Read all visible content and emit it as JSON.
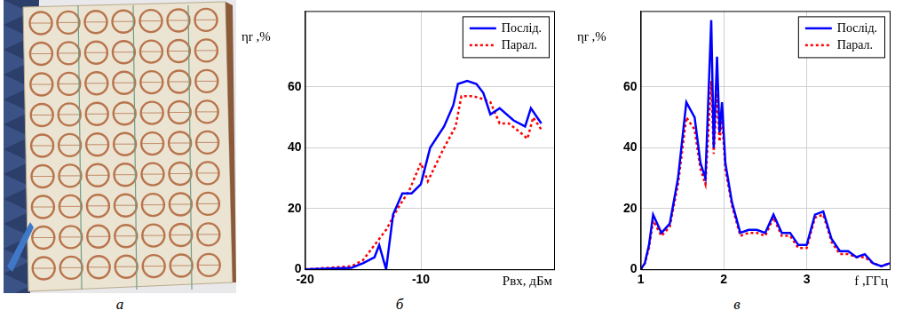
{
  "panel_labels": [
    "а",
    "б",
    "в"
  ],
  "chart_data": [
    {
      "type": "line",
      "x_label": "Рвх, дБм",
      "y_label": "ηr ,%",
      "xlim": [
        -20,
        1.5
      ],
      "xticks": [
        -20,
        -10
      ],
      "ylim": [
        0,
        85
      ],
      "yticks": [
        0,
        20,
        40,
        60
      ],
      "grid": true,
      "legend": "upper right",
      "series": [
        {
          "name": "Послід.",
          "color": "#0000ff",
          "line_style": "solid",
          "x": [
            -20,
            -16,
            -15,
            -14,
            -13.6,
            -13,
            -12.4,
            -11.6,
            -10.8,
            -10,
            -9.2,
            -8,
            -7.2,
            -6.8,
            -6,
            -5.2,
            -4.6,
            -4,
            -3.2,
            -2,
            -1,
            -0.5,
            0.4
          ],
          "values": [
            0,
            0.5,
            2,
            4,
            8,
            0,
            18,
            25,
            25,
            28,
            40,
            47,
            54,
            61,
            62,
            61,
            58,
            51,
            53,
            49,
            47,
            53,
            48
          ]
        },
        {
          "name": "Парал.",
          "color": "#ff0000",
          "line_style": "dotted",
          "x": [
            -20,
            -16,
            -15,
            -14,
            -13,
            -12,
            -11,
            -10,
            -9.4,
            -8,
            -7,
            -6.5,
            -5.5,
            -4.6,
            -4,
            -3.2,
            -2.4,
            -1.4,
            -0.8,
            -0.3,
            0.4
          ],
          "values": [
            0,
            1,
            3,
            8,
            13,
            20,
            26,
            35,
            29,
            40,
            47,
            57,
            57,
            56,
            55,
            48,
            48,
            45,
            43,
            50,
            46
          ]
        }
      ]
    },
    {
      "type": "line",
      "x_label": "f ,ГГц",
      "y_label": "ηr ,%",
      "xlim": [
        1,
        4
      ],
      "xticks": [
        1,
        2,
        3
      ],
      "ylim": [
        0,
        85
      ],
      "yticks": [
        0,
        20,
        40,
        60
      ],
      "grid": true,
      "legend": "upper right",
      "x": [
        1,
        1.05,
        1.1,
        1.15,
        1.25,
        1.35,
        1.45,
        1.55,
        1.65,
        1.72,
        1.78,
        1.85,
        1.88,
        1.92,
        1.95,
        1.98,
        2.02,
        2.1,
        2.2,
        2.3,
        2.4,
        2.5,
        2.6,
        2.7,
        2.8,
        2.9,
        3.0,
        3.1,
        3.2,
        3.3,
        3.4,
        3.5,
        3.6,
        3.7,
        3.8,
        3.9,
        4.0
      ],
      "series": [
        {
          "name": "Послід.",
          "color": "#0000ff",
          "line_style": "solid",
          "values": [
            0,
            2,
            8,
            18,
            12,
            15,
            30,
            55,
            50,
            35,
            30,
            82,
            40,
            70,
            45,
            55,
            35,
            22,
            12,
            13,
            13,
            12,
            18,
            12,
            12,
            8,
            8,
            18,
            19,
            10,
            6,
            6,
            4,
            5,
            2,
            1,
            2
          ]
        },
        {
          "name": "Парал.",
          "color": "#ff0000",
          "line_style": "dotted",
          "values": [
            0,
            2,
            7,
            16,
            11,
            14,
            28,
            50,
            46,
            33,
            28,
            62,
            38,
            58,
            42,
            50,
            33,
            21,
            11,
            12,
            12,
            11,
            17,
            11,
            11,
            7,
            7,
            17,
            18,
            9,
            5,
            5,
            4,
            4,
            2,
            1,
            2
          ]
        }
      ]
    }
  ]
}
